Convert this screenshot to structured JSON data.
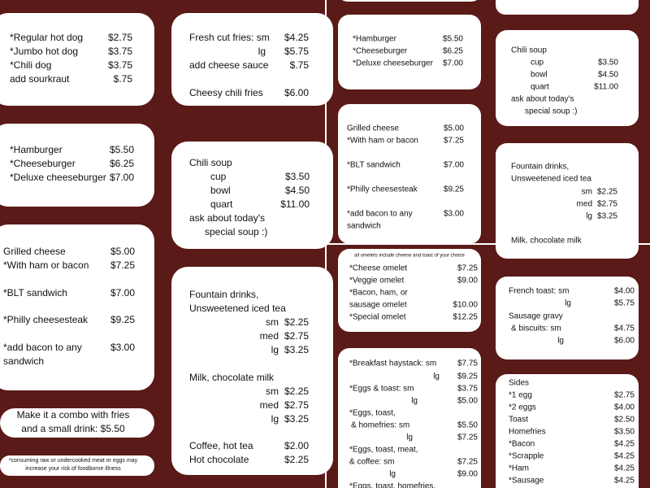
{
  "left": {
    "cards": [
      {
        "rows": [
          {
            "item": "*Regular hot dog",
            "price": "$2.75"
          },
          {
            "item": "*Jumbo hot dog",
            "price": "$3.75"
          },
          {
            "item": "*Chili dog",
            "price": "$3.75"
          },
          {
            "item": "add sourkraut",
            "price": "$.75"
          }
        ]
      },
      {
        "rows": [
          {
            "item": "Fresh cut fries: sm",
            "price": "$4.25"
          },
          {
            "item": "lg",
            "price": "$5.75"
          },
          {
            "item": "add cheese sauce",
            "price": "$.75"
          },
          {
            "item": "Cheesy chili fries",
            "price": "$6.00"
          }
        ]
      },
      {
        "rows": [
          {
            "item": "*Hamburger",
            "price": "$5.50"
          },
          {
            "item": "*Cheeseburger",
            "price": "$6.25"
          },
          {
            "item": "*Deluxe cheeseburger",
            "price": "$7.00"
          }
        ]
      },
      {
        "rows": [
          {
            "item": "Chili soup"
          },
          {
            "item": "cup",
            "price": "$3.50"
          },
          {
            "item": "bowl",
            "price": "$4.50"
          },
          {
            "item": "quart",
            "price": "$11.00"
          },
          {
            "item": "ask about today's"
          },
          {
            "item": "special soup :)"
          }
        ]
      },
      {
        "rows": [
          {
            "item": "Grilled cheese",
            "price": "$5.00"
          },
          {
            "item": "*With ham or  bacon",
            "price": "$7.25"
          },
          {
            "item": "*BLT sandwich",
            "price": "$7.00"
          },
          {
            "item": "*Philly cheesesteak",
            "price": "$9.25"
          },
          {
            "item": "*add bacon to any",
            "price": "$3.00"
          },
          {
            "item": "sandwich"
          }
        ]
      },
      {
        "rows": [
          {
            "item": "Fountain drinks,"
          },
          {
            "item": "Unsweetened iced tea"
          },
          {
            "item": "sm",
            "price": "$2.25"
          },
          {
            "item": "med",
            "price": "$2.75"
          },
          {
            "item": "lg",
            "price": "$3.25"
          },
          {
            "item": "Milk, chocolate milk"
          },
          {
            "item": "sm",
            "price": "$2.25"
          },
          {
            "item": "med",
            "price": "$2.75"
          },
          {
            "item": "lg",
            "price": "$3.25"
          },
          {
            "item": "Coffee, hot tea",
            "price": "$2.00"
          },
          {
            "item": "Hot chocolate",
            "price": "$2.25"
          }
        ]
      },
      {
        "rows": [
          {
            "item": "Make it a combo with fries"
          },
          {
            "item": "and a small drink: $5.50"
          }
        ]
      },
      {
        "rows": [
          {
            "item": "*consuming raw or undercooked meat or eggs may"
          },
          {
            "item": "increase your risk of foodborne illness"
          }
        ]
      }
    ]
  },
  "top_right": {
    "cards": [
      {
        "rows": [
          {
            "item": "*Hamburger",
            "price": "$5.50"
          },
          {
            "item": "*Cheeseburger",
            "price": "$6.25"
          },
          {
            "item": "*Deluxe cheeseburger",
            "price": "$7.00"
          }
        ]
      },
      {
        "rows": [
          {
            "item": "Chili soup"
          },
          {
            "item": "cup",
            "price": "$3.50"
          },
          {
            "item": "bowl",
            "price": "$4.50"
          },
          {
            "item": "quart",
            "price": "$11.00"
          },
          {
            "item": "ask about today's"
          },
          {
            "item": "special soup :)"
          }
        ]
      },
      {
        "rows": [
          {
            "item": "Grilled cheese",
            "price": "$5.00"
          },
          {
            "item": "*With ham or  bacon",
            "price": "$7.25"
          },
          {
            "item": "*BLT sandwich",
            "price": "$7.00"
          },
          {
            "item": "*Philly cheesesteak",
            "price": "$9.25"
          },
          {
            "item": "*add bacon to any",
            "price": "$3.00"
          },
          {
            "item": "sandwich"
          }
        ]
      },
      {
        "rows": [
          {
            "item": "Fountain drinks,"
          },
          {
            "item": "Unsweetened iced tea"
          },
          {
            "item": "sm",
            "price": "$2.25"
          },
          {
            "item": "med",
            "price": "$2.75"
          },
          {
            "item": "lg",
            "price": "$3.25"
          },
          {
            "item": "Milk, chocolate milk"
          }
        ]
      }
    ]
  },
  "bottom_right": {
    "cards": [
      {
        "rows": [
          {
            "item": "all omelets include cheese and toast of your choice"
          },
          {
            "item": "*Cheese omelet",
            "price": "$7.25"
          },
          {
            "item": "*Veggie omelet",
            "price": "$9.00"
          },
          {
            "item": "*Bacon, ham, or"
          },
          {
            "item": "sausage omelet",
            "price": "$10.00"
          },
          {
            "item": "*Special omelet",
            "price": "$12.25"
          }
        ]
      },
      {
        "rows": [
          {
            "item": "French toast: sm",
            "price": "$4.00"
          },
          {
            "item": "lg",
            "price": "$5.75"
          },
          {
            "item": "Sausage gravy"
          },
          {
            "item": "& biscuits: sm",
            "price": "$4.75"
          },
          {
            "item": "lg",
            "price": "$6.00"
          }
        ]
      },
      {
        "rows": [
          {
            "item": "*Breakfast haystack: sm",
            "price": "$7.75"
          },
          {
            "item": "lg",
            "price": "$9.25"
          },
          {
            "item": "*Eggs & toast: sm",
            "price": "$3.75"
          },
          {
            "item": "lg",
            "price": "$5.00"
          },
          {
            "item": "*Eggs, toast,"
          },
          {
            "item": "& homefries: sm",
            "price": "$5.50"
          },
          {
            "item": "lg",
            "price": "$7.25"
          },
          {
            "item": "*Eggs, toast, meat,"
          },
          {
            "item": "& coffee: sm",
            "price": "$7.25"
          },
          {
            "item": "lg",
            "price": "$9.00"
          },
          {
            "item": "*Eggs, toast, homefries,"
          }
        ]
      },
      {
        "rows": [
          {
            "item": "Sides"
          },
          {
            "item": "*1 egg",
            "price": "$2.75"
          },
          {
            "item": "*2 eggs",
            "price": "$4.00"
          },
          {
            "item": "Toast",
            "price": "$2.50"
          },
          {
            "item": "Homefries",
            "price": "$3.50"
          },
          {
            "item": "*Bacon",
            "price": "$4.25"
          },
          {
            "item": "*Scrapple",
            "price": "$4.25"
          },
          {
            "item": "*Ham",
            "price": "$4.25"
          },
          {
            "item": "*Sausage",
            "price": "$4.25"
          }
        ]
      }
    ]
  }
}
